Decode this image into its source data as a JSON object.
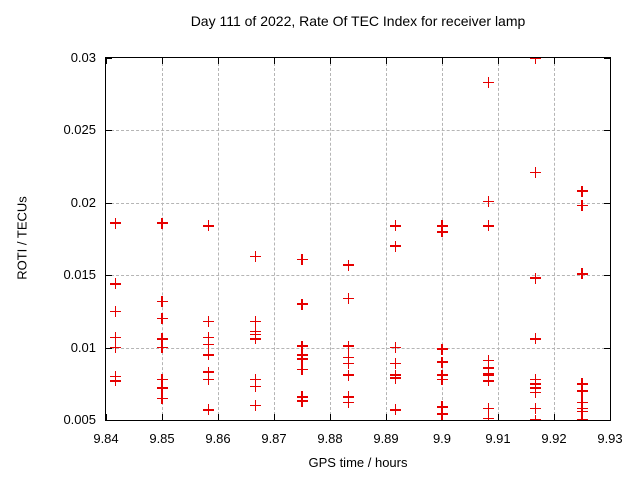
{
  "title": "Day 111 of 2022, Rate Of TEC Index for receiver lamp",
  "chart_data": {
    "type": "scatter",
    "title": "Day 111 of 2022, Rate Of TEC Index for receiver lamp",
    "xlabel": "GPS time / hours",
    "ylabel": "ROTI / TECUs",
    "xlim": [
      9.84,
      9.93
    ],
    "ylim": [
      0.005,
      0.03
    ],
    "grid": true,
    "legend": false,
    "marker": "plus",
    "marker_color": "#e60000",
    "background_color": "#ffffff",
    "grid_color": "#b5b5b5",
    "xticks": {
      "values": [
        9.84,
        9.85,
        9.86,
        9.87,
        9.88,
        9.89,
        9.9,
        9.91,
        9.92,
        9.93
      ],
      "labels": [
        "9.84",
        "9.85",
        "9.86",
        "9.87",
        "9.88",
        "9.89",
        "9.9",
        "9.91",
        "9.92",
        "9.93"
      ]
    },
    "yticks": {
      "values": [
        0.005,
        0.01,
        0.015,
        0.02,
        0.025,
        0.03
      ],
      "labels": [
        "0.005",
        "0.01",
        "0.015",
        "0.02",
        "0.025",
        "0.03"
      ]
    },
    "points": [
      [
        9.8417,
        0.0186
      ],
      [
        9.8417,
        0.0144
      ],
      [
        9.8417,
        0.0125
      ],
      [
        9.8417,
        0.0107
      ],
      [
        9.8417,
        0.01
      ],
      [
        9.8417,
        0.008
      ],
      [
        9.8417,
        0.0077
      ],
      [
        9.85,
        0.0186
      ],
      [
        9.85,
        0.0132
      ],
      [
        9.85,
        0.012
      ],
      [
        9.85,
        0.0106
      ],
      [
        9.85,
        0.01
      ],
      [
        9.85,
        0.0078
      ],
      [
        9.85,
        0.0072
      ],
      [
        9.85,
        0.0065
      ],
      [
        9.8583,
        0.0184
      ],
      [
        9.8583,
        0.0118
      ],
      [
        9.8583,
        0.0107
      ],
      [
        9.8583,
        0.0102
      ],
      [
        9.8583,
        0.0095
      ],
      [
        9.8583,
        0.0083
      ],
      [
        9.8583,
        0.0078
      ],
      [
        9.8583,
        0.0057
      ],
      [
        9.8667,
        0.0163
      ],
      [
        9.8667,
        0.0118
      ],
      [
        9.8667,
        0.0111
      ],
      [
        9.8667,
        0.0109
      ],
      [
        9.8667,
        0.0106
      ],
      [
        9.8667,
        0.0078
      ],
      [
        9.8667,
        0.0073
      ],
      [
        9.8667,
        0.006
      ],
      [
        9.875,
        0.0161
      ],
      [
        9.875,
        0.013
      ],
      [
        9.875,
        0.0101
      ],
      [
        9.875,
        0.0095
      ],
      [
        9.875,
        0.0092
      ],
      [
        9.875,
        0.0085
      ],
      [
        9.875,
        0.0066
      ],
      [
        9.875,
        0.0063
      ],
      [
        9.8833,
        0.0157
      ],
      [
        9.8833,
        0.0134
      ],
      [
        9.8833,
        0.0101
      ],
      [
        9.8833,
        0.0093
      ],
      [
        9.8833,
        0.0089
      ],
      [
        9.8833,
        0.0081
      ],
      [
        9.8833,
        0.0066
      ],
      [
        9.8833,
        0.0062
      ],
      [
        9.8917,
        0.0184
      ],
      [
        9.8917,
        0.017
      ],
      [
        9.8917,
        0.01
      ],
      [
        9.8917,
        0.0089
      ],
      [
        9.8917,
        0.0081
      ],
      [
        9.8917,
        0.0079
      ],
      [
        9.8917,
        0.0057
      ],
      [
        9.9,
        0.0184
      ],
      [
        9.9,
        0.018
      ],
      [
        9.9,
        0.0099
      ],
      [
        9.9,
        0.009
      ],
      [
        9.9,
        0.0081
      ],
      [
        9.9,
        0.0078
      ],
      [
        9.9,
        0.0059
      ],
      [
        9.9,
        0.0054
      ],
      [
        9.9083,
        0.0283
      ],
      [
        9.9083,
        0.0201
      ],
      [
        9.9083,
        0.0184
      ],
      [
        9.9083,
        0.0091
      ],
      [
        9.9083,
        0.0086
      ],
      [
        9.9083,
        0.0082
      ],
      [
        9.9083,
        0.0081
      ],
      [
        9.9083,
        0.0077
      ],
      [
        9.9083,
        0.0058
      ],
      [
        9.9083,
        0.0051
      ],
      [
        9.9167,
        0.03
      ],
      [
        9.9167,
        0.0221
      ],
      [
        9.9167,
        0.0148
      ],
      [
        9.9167,
        0.0106
      ],
      [
        9.9167,
        0.0078
      ],
      [
        9.9167,
        0.0075
      ],
      [
        9.9167,
        0.0072
      ],
      [
        9.9167,
        0.0069
      ],
      [
        9.9167,
        0.0058
      ],
      [
        9.9167,
        0.005
      ],
      [
        9.925,
        0.0208
      ],
      [
        9.925,
        0.0198
      ],
      [
        9.925,
        0.0151
      ],
      [
        9.925,
        0.0075
      ],
      [
        9.925,
        0.007
      ],
      [
        9.925,
        0.0062
      ],
      [
        9.925,
        0.0058
      ],
      [
        9.925,
        0.0056
      ],
      [
        9.925,
        0.005
      ]
    ]
  }
}
